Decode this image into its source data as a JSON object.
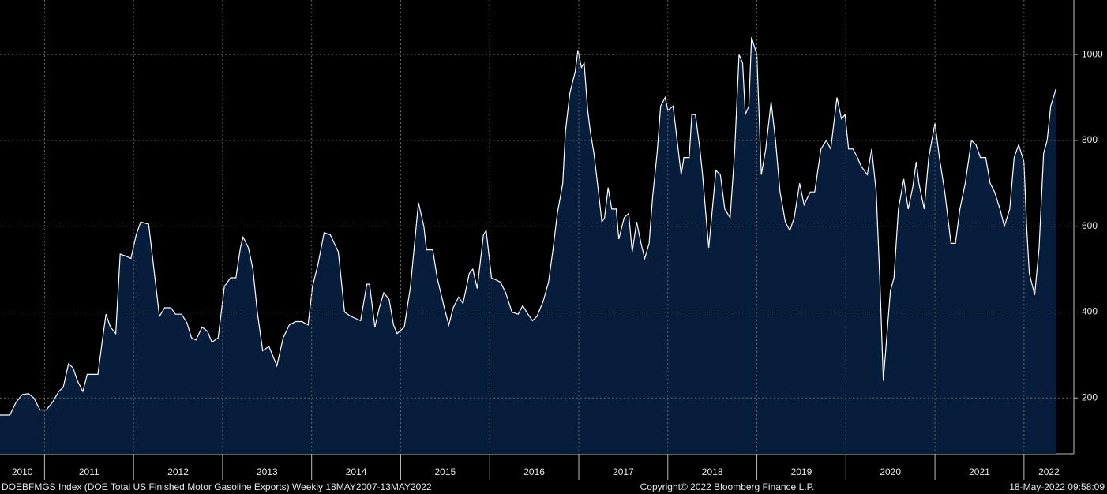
{
  "chart_data": {
    "type": "area",
    "footer_left": "DOEBFMGS Index (DOE Total US Finished Motor Gasoline Exports)  Weekly 18MAY2007-13MAY2022",
    "footer_center": "Copyright© 2022 Bloomberg Finance L.P.",
    "footer_right": "18-May-2022 09:58:09",
    "line_color": "#ffffff",
    "fill_color": "#061d3c",
    "grid": true,
    "xlim": [
      2010.5,
      2022.56
    ],
    "ylim": [
      70,
      1127
    ],
    "yticks": [
      200,
      400,
      600,
      800,
      1000
    ],
    "xticks": [
      {
        "value": 2010.75,
        "label": "2010"
      },
      {
        "value": 2011.5,
        "label": "2011"
      },
      {
        "value": 2012.5,
        "label": "2012"
      },
      {
        "value": 2013.5,
        "label": "2013"
      },
      {
        "value": 2014.5,
        "label": "2014"
      },
      {
        "value": 2015.5,
        "label": "2015"
      },
      {
        "value": 2016.5,
        "label": "2016"
      },
      {
        "value": 2017.5,
        "label": "2017"
      },
      {
        "value": 2018.5,
        "label": "2018"
      },
      {
        "value": 2019.5,
        "label": "2019"
      },
      {
        "value": 2020.5,
        "label": "2020"
      },
      {
        "value": 2021.5,
        "label": "2021"
      },
      {
        "value": 2022.28,
        "label": "2022"
      }
    ],
    "x": [
      2010.5,
      2010.61,
      2010.68,
      2010.75,
      2010.82,
      2010.88,
      2010.95,
      2011.02,
      2011.09,
      2011.16,
      2011.21,
      2011.27,
      2011.32,
      2011.37,
      2011.43,
      2011.48,
      2011.55,
      2011.6,
      2011.64,
      2011.69,
      2011.74,
      2011.8,
      2011.85,
      2011.92,
      2011.97,
      2012.03,
      2012.08,
      2012.17,
      2012.24,
      2012.29,
      2012.35,
      2012.42,
      2012.47,
      2012.54,
      2012.6,
      2012.65,
      2012.7,
      2012.77,
      2012.83,
      2012.88,
      2012.95,
      2013.02,
      2013.09,
      2013.15,
      2013.2,
      2013.23,
      2013.29,
      2013.34,
      2013.39,
      2013.45,
      2013.52,
      2013.61,
      2013.68,
      2013.75,
      2013.82,
      2013.89,
      2013.96,
      2014.01,
      2014.07,
      2014.14,
      2014.21,
      2014.3,
      2014.37,
      2014.44,
      2014.55,
      2014.62,
      2014.65,
      2014.71,
      2014.76,
      2014.81,
      2014.87,
      2014.92,
      2014.96,
      2015.04,
      2015.11,
      2015.17,
      2015.2,
      2015.26,
      2015.29,
      2015.36,
      2015.41,
      2015.49,
      2015.54,
      2015.59,
      2015.65,
      2015.7,
      2015.77,
      2015.81,
      2015.86,
      2015.93,
      2015.96,
      2016.02,
      2016.12,
      2016.18,
      2016.25,
      2016.32,
      2016.37,
      2016.43,
      2016.48,
      2016.53,
      2016.6,
      2016.66,
      2016.71,
      2016.76,
      2016.82,
      2016.85,
      2016.9,
      2016.96,
      2016.99,
      2017.03,
      2017.06,
      2017.1,
      2017.13,
      2017.17,
      2017.21,
      2017.26,
      2017.29,
      2017.33,
      2017.37,
      2017.42,
      2017.45,
      2017.51,
      2017.56,
      2017.6,
      2017.65,
      2017.7,
      2017.74,
      2017.79,
      2017.83,
      2017.88,
      2017.92,
      2017.97,
      2018.0,
      2018.06,
      2018.11,
      2018.15,
      2018.18,
      2018.24,
      2018.27,
      2018.31,
      2018.36,
      2018.39,
      2018.43,
      2018.46,
      2018.5,
      2018.54,
      2018.59,
      2018.64,
      2018.7,
      2018.75,
      2018.8,
      2018.84,
      2018.87,
      2018.91,
      2018.94,
      2019.0,
      2019.05,
      2019.1,
      2019.16,
      2019.21,
      2019.26,
      2019.32,
      2019.37,
      2019.42,
      2019.48,
      2019.53,
      2019.6,
      2019.65,
      2019.72,
      2019.78,
      2019.83,
      2019.9,
      2019.95,
      2019.99,
      2020.03,
      2020.08,
      2020.13,
      2020.17,
      2020.24,
      2020.29,
      2020.34,
      2020.38,
      2020.42,
      2020.45,
      2020.5,
      2020.54,
      2020.59,
      2020.65,
      2020.7,
      2020.75,
      2020.79,
      2020.82,
      2020.88,
      2020.93,
      2021.0,
      2021.05,
      2021.11,
      2021.18,
      2021.23,
      2021.28,
      2021.34,
      2021.41,
      2021.46,
      2021.51,
      2021.57,
      2021.62,
      2021.67,
      2021.73,
      2021.78,
      2021.84,
      2021.89,
      2021.94,
      2022.0,
      2022.03,
      2022.06,
      2022.12,
      2022.17,
      2022.22,
      2022.26,
      2022.3,
      2022.33,
      2022.36
    ],
    "values": [
      160,
      160,
      190,
      208,
      210,
      200,
      172,
      172,
      190,
      215,
      225,
      280,
      270,
      240,
      215,
      255,
      255,
      255,
      320,
      395,
      365,
      350,
      535,
      530,
      525,
      580,
      610,
      605,
      480,
      390,
      410,
      410,
      395,
      395,
      375,
      340,
      335,
      365,
      355,
      330,
      340,
      460,
      480,
      480,
      550,
      575,
      550,
      500,
      400,
      310,
      320,
      275,
      340,
      370,
      378,
      378,
      370,
      460,
      510,
      585,
      580,
      540,
      400,
      390,
      380,
      465,
      465,
      365,
      410,
      445,
      430,
      370,
      350,
      365,
      460,
      590,
      655,
      600,
      545,
      545,
      480,
      410,
      370,
      410,
      435,
      420,
      490,
      500,
      455,
      580,
      590,
      480,
      470,
      445,
      400,
      395,
      415,
      395,
      380,
      390,
      425,
      470,
      545,
      630,
      700,
      820,
      910,
      960,
      1010,
      970,
      980,
      870,
      820,
      770,
      700,
      610,
      620,
      690,
      640,
      640,
      570,
      620,
      630,
      540,
      610,
      560,
      525,
      560,
      670,
      770,
      880,
      900,
      870,
      880,
      790,
      720,
      760,
      760,
      860,
      860,
      780,
      720,
      620,
      550,
      640,
      730,
      720,
      640,
      620,
      770,
      1000,
      980,
      860,
      880,
      1040,
      1000,
      720,
      780,
      890,
      800,
      680,
      610,
      590,
      620,
      700,
      650,
      680,
      680,
      780,
      800,
      780,
      900,
      850,
      860,
      780,
      780,
      760,
      740,
      720,
      780,
      680,
      480,
      240,
      320,
      450,
      480,
      640,
      710,
      640,
      690,
      750,
      700,
      640,
      760,
      840,
      760,
      680,
      560,
      560,
      640,
      700,
      800,
      790,
      760,
      760,
      700,
      680,
      640,
      600,
      640,
      760,
      790,
      750,
      600,
      490,
      440,
      550,
      770,
      800,
      880,
      900,
      920
    ]
  }
}
